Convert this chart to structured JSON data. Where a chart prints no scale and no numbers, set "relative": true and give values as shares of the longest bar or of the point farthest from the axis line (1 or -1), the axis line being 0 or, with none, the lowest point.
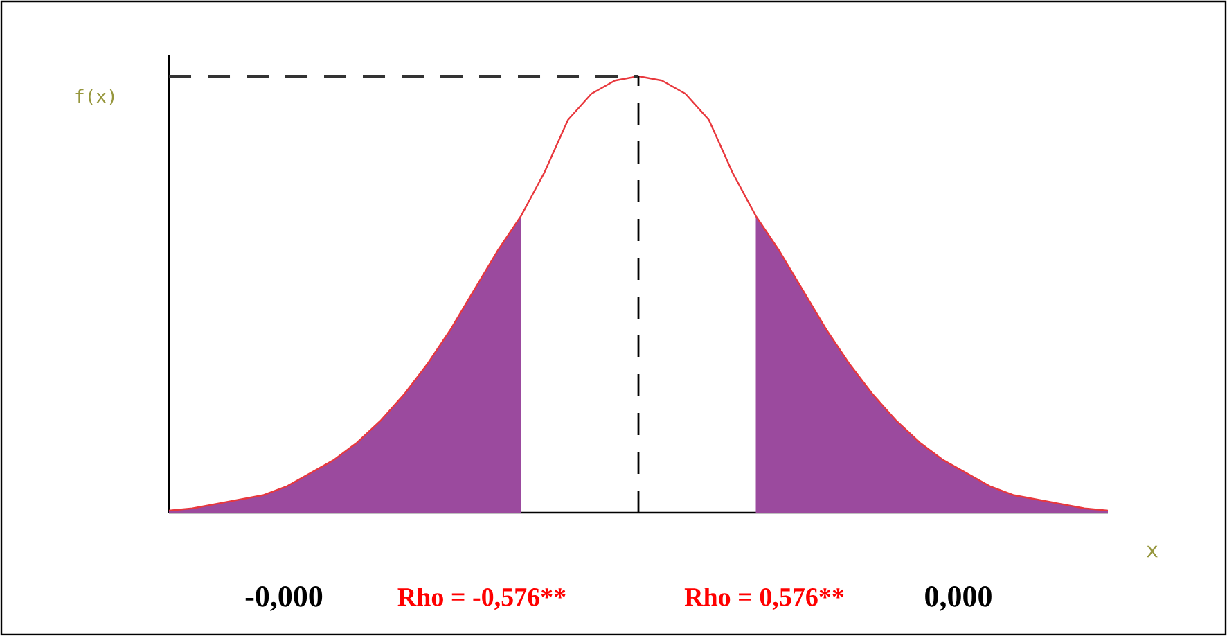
{
  "chart_data": {
    "type": "line",
    "relative": true,
    "xlabel": "x",
    "ylabel": "f(x)",
    "categories": [
      null,
      null,
      null,
      null,
      null,
      null,
      null,
      null,
      null,
      null,
      null,
      null,
      null,
      null,
      null,
      null,
      null,
      null,
      null,
      null,
      null,
      null,
      null,
      null,
      null,
      null,
      null,
      null,
      null,
      null,
      null,
      null,
      null,
      null,
      null,
      null,
      null,
      null,
      null,
      null,
      null
    ],
    "series": [
      {
        "color": "#e8383d",
        "values": [
          0.005,
          0.01,
          0.02,
          0.03,
          0.04,
          0.06,
          0.09,
          0.12,
          0.16,
          0.21,
          0.27,
          0.34,
          0.42,
          0.51,
          0.6,
          0.68,
          0.78,
          0.9,
          0.96,
          0.99,
          1,
          0.99,
          0.96,
          0.9,
          0.78,
          0.68,
          0.6,
          0.51,
          0.42,
          0.34,
          0.27,
          0.21,
          0.16,
          0.12,
          0.09,
          0.06,
          0.04,
          0.03,
          0.02,
          0.01,
          0.005
        ]
      },
      {
        "type": "area",
        "color": "#9b4a9e",
        "values": [
          0.005,
          0.01,
          0.02,
          0.03,
          0.04,
          0.06,
          0.09,
          0.12,
          0.16,
          0.21,
          0.27,
          0.34,
          0.42,
          0.51,
          0.6,
          0.68,
          null,
          null,
          null,
          null,
          null,
          null,
          null,
          null,
          null,
          null,
          null,
          null,
          null,
          null,
          null,
          null,
          null,
          null,
          null,
          null,
          null,
          null,
          null,
          null,
          null
        ]
      },
      {
        "type": "area",
        "color": "#9b4a9e",
        "values": [
          null,
          null,
          null,
          null,
          null,
          null,
          null,
          null,
          null,
          null,
          null,
          null,
          null,
          null,
          null,
          null,
          null,
          null,
          null,
          null,
          null,
          null,
          null,
          null,
          null,
          0.68,
          0.6,
          0.51,
          0.42,
          0.34,
          0.27,
          0.21,
          0.16,
          0.12,
          0.09,
          0.06,
          0.04,
          0.03,
          0.02,
          0.01,
          0.005
        ]
      }
    ],
    "ref_lines": [
      {
        "axis": "y",
        "value": 1,
        "color": "#333333",
        "line_style": "dashed"
      }
    ],
    "annotations": [
      "-0,000",
      "Rho = -0,576**",
      "Rho = 0,576**",
      "0,000"
    ]
  }
}
